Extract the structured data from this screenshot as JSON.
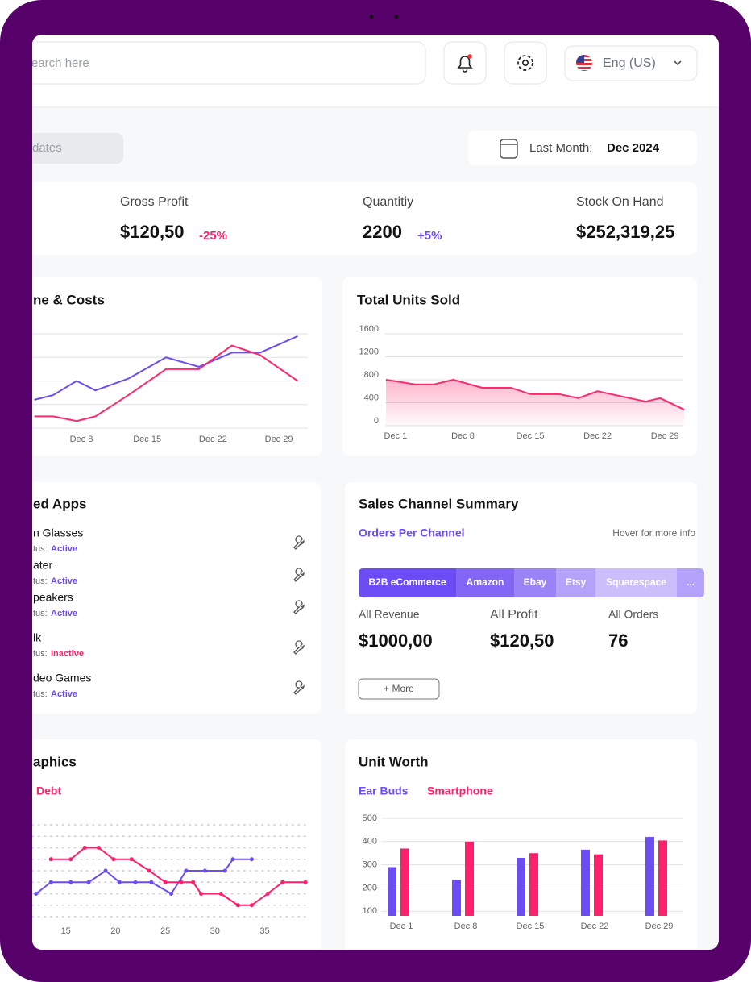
{
  "header": {
    "search_placeholder": "earch here",
    "language": "Eng (US)"
  },
  "filter": {
    "label": "dates"
  },
  "date_range": {
    "label": "Last Month:",
    "value": "Dec 2024"
  },
  "kpis": [
    {
      "label": "Gross Profit",
      "value": "$120,50",
      "change": "-25%",
      "change_color": "#ff1f6b"
    },
    {
      "label": "Quantitiy",
      "value": "2200",
      "change": "+5%",
      "change_color": "#6c4cf5"
    },
    {
      "label": "Stock On Hand",
      "value": "$252,319,25"
    }
  ],
  "connected_apps": {
    "title": "ed Apps",
    "status_label": "tus:",
    "apps": [
      {
        "name": "n Glasses",
        "status": "Active",
        "status_color": "#6c4cf5"
      },
      {
        "name": "ater",
        "status": "Active",
        "status_color": "#6c4cf5"
      },
      {
        "name": "peakers",
        "status": "Active",
        "status_color": "#6c4cf5"
      },
      {
        "name": "lk",
        "status": "Inactive",
        "status_color": "#ff1f6b"
      },
      {
        "name": "deo Games",
        "status": "Active",
        "status_color": "#6c4cf5"
      }
    ]
  },
  "sales_channel": {
    "title": "Sales Channel Summary",
    "subtitle": "Orders Per Channel",
    "hint": "Hover for more info",
    "tabs": [
      {
        "label": "B2B eCommerce",
        "color": "#6c4cf5"
      },
      {
        "label": "Amazon",
        "color": "#8466f6"
      },
      {
        "label": "Ebay",
        "color": "#9a82f7"
      },
      {
        "label": "Etsy",
        "color": "#b2a2f9"
      },
      {
        "label": "Squarespace",
        "color": "#cbbffb"
      },
      {
        "label": "...",
        "color": "#b2a2f9"
      }
    ],
    "metrics": [
      {
        "label": "All Revenue",
        "value": "$1000,00"
      },
      {
        "label": "All Profit",
        "value": "$120,50"
      },
      {
        "label": "All Orders",
        "value": "76"
      }
    ],
    "button": "+ More"
  },
  "chart_data": [
    {
      "type": "line",
      "title": "ne & Costs",
      "xlim": [
        0,
        31
      ],
      "xticks": [
        {
          "value": 8,
          "label": "Dec 8"
        },
        {
          "value": 15,
          "label": "Dec 15"
        },
        {
          "value": 22,
          "label": "Dec 22"
        },
        {
          "value": 29,
          "label": "Dec 29"
        }
      ],
      "ylim": [
        0,
        4
      ],
      "yticks": [
        0,
        1,
        2,
        3,
        4
      ],
      "show_tick_labels": false,
      "grid": true,
      "series": [
        {
          "color": "#6c4cf5",
          "x": [
            3,
            5,
            7.5,
            9.5,
            13,
            17,
            20.5,
            24,
            27,
            31
          ],
          "values": [
            1.2,
            1.4,
            2,
            1.6,
            2.1,
            3,
            2.6,
            3.2,
            3.2,
            3.9
          ]
        },
        {
          "color": "#ff2a6d",
          "x": [
            3,
            5,
            7.5,
            9.5,
            13,
            17,
            20.5,
            24,
            27,
            31
          ],
          "values": [
            0.5,
            0.5,
            0.3,
            0.5,
            1.4,
            2.5,
            2.5,
            3.5,
            3.1,
            2
          ]
        }
      ]
    },
    {
      "type": "area",
      "title": "Total Units Sold",
      "xlim": [
        0,
        31
      ],
      "xticks": [
        {
          "value": 1,
          "label": "Dec 1"
        },
        {
          "value": 8,
          "label": "Dec 8"
        },
        {
          "value": 15,
          "label": "Dec 15"
        },
        {
          "value": 22,
          "label": "Dec 22"
        },
        {
          "value": 29,
          "label": "Dec 29"
        }
      ],
      "ylim": [
        0,
        1600
      ],
      "yticks": [
        0,
        400,
        800,
        1200,
        1600
      ],
      "grid": true,
      "series": [
        {
          "color": "#ff2a6d",
          "x": [
            0,
            3,
            5,
            7,
            10,
            13,
            15,
            18,
            20,
            22,
            27,
            28.5,
            31
          ],
          "values": [
            800,
            720,
            720,
            800,
            660,
            660,
            550,
            550,
            480,
            600,
            420,
            480,
            280
          ]
        }
      ]
    },
    {
      "type": "line",
      "title": "aphics",
      "markers": true,
      "xlim": [
        10,
        39.5
      ],
      "xticks": [
        15,
        20,
        25,
        30,
        35
      ],
      "ylim": [
        0,
        8
      ],
      "yticks": [
        0,
        1,
        2,
        3,
        4,
        5,
        6,
        7,
        8
      ],
      "show_tick_labels": false,
      "grid": "dotted",
      "series": [
        {
          "color": "#6c4cf5",
          "x": [
            12,
            13.5,
            15.5,
            17.3,
            19,
            20.4,
            22,
            23.6,
            25.6,
            27.1,
            29,
            31,
            31.8,
            33.7
          ],
          "values": [
            2,
            3,
            3,
            3,
            4,
            3,
            3,
            3,
            2,
            4,
            4,
            4,
            5,
            5
          ]
        },
        {
          "name": "Debt",
          "color": "#ff1f6b",
          "x": [
            13.5,
            15.5,
            16.9,
            18.3,
            19.8,
            21.6,
            23.4,
            25,
            26.6,
            27.8,
            28.6,
            30.6,
            32.3,
            33.7,
            35.3,
            36.8,
            39.1
          ],
          "values": [
            5,
            5,
            6,
            6,
            5,
            5,
            4,
            3,
            3,
            3,
            2,
            2,
            1,
            1,
            2,
            3,
            3
          ]
        }
      ]
    },
    {
      "type": "grouped_bar",
      "title": "Unit Worth",
      "categories": [
        "Dec 1",
        "Dec 8",
        "Dec 15",
        "Dec 22",
        "Dec 29"
      ],
      "ylim": [
        80,
        500
      ],
      "yticks": [
        100,
        200,
        300,
        400,
        500
      ],
      "grid": true,
      "series": [
        {
          "name": "Ear Buds",
          "color": "#6c4cf5",
          "values": [
            290,
            235,
            330,
            365,
            420
          ]
        },
        {
          "name": "Smartphone",
          "color": "#ff1f6b",
          "values": [
            370,
            400,
            350,
            345,
            405
          ]
        }
      ]
    }
  ]
}
